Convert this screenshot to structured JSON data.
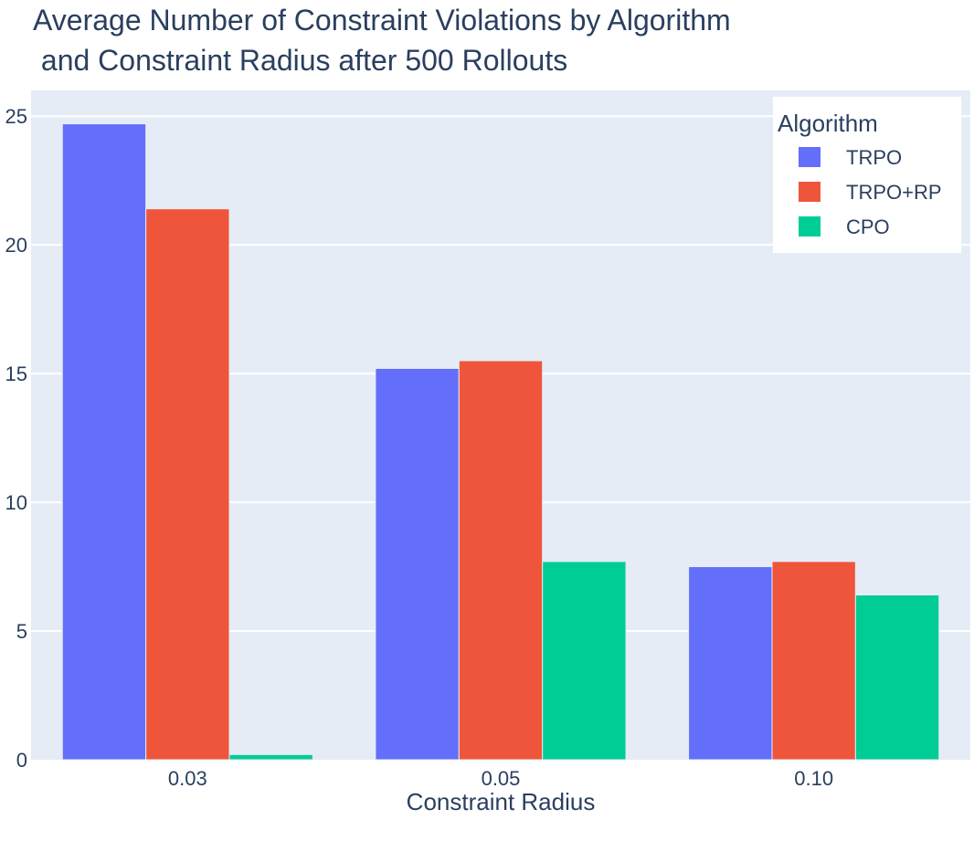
{
  "chart_data": {
    "type": "bar",
    "title_lines": [
      "Average Number of Constraint Violations by Algorithm",
      " and Constraint Radius after 500 Rollouts"
    ],
    "xlabel": "Constraint Radius",
    "ylabel": "",
    "categories": [
      "0.03",
      "0.05",
      "0.10"
    ],
    "series": [
      {
        "name": "TRPO",
        "color": "#636efa",
        "values": [
          24.7,
          15.2,
          7.5
        ]
      },
      {
        "name": "TRPO+RP",
        "color": "#ef553b",
        "values": [
          21.4,
          15.5,
          7.7
        ]
      },
      {
        "name": "CPO",
        "color": "#00cc96",
        "values": [
          0.2,
          7.7,
          6.4
        ]
      }
    ],
    "ylim": [
      0,
      26
    ],
    "yticks": [
      0,
      5,
      10,
      15,
      20,
      25
    ],
    "ytick_labels": [
      "0",
      "5",
      "10",
      "15",
      "20",
      "25"
    ],
    "grid": true,
    "legend": {
      "title": "Algorithm",
      "position": "top-right"
    },
    "colors": {
      "plot_bg": "#e5ecf6",
      "grid": "#ffffff",
      "text": "#2a3f5f"
    }
  }
}
